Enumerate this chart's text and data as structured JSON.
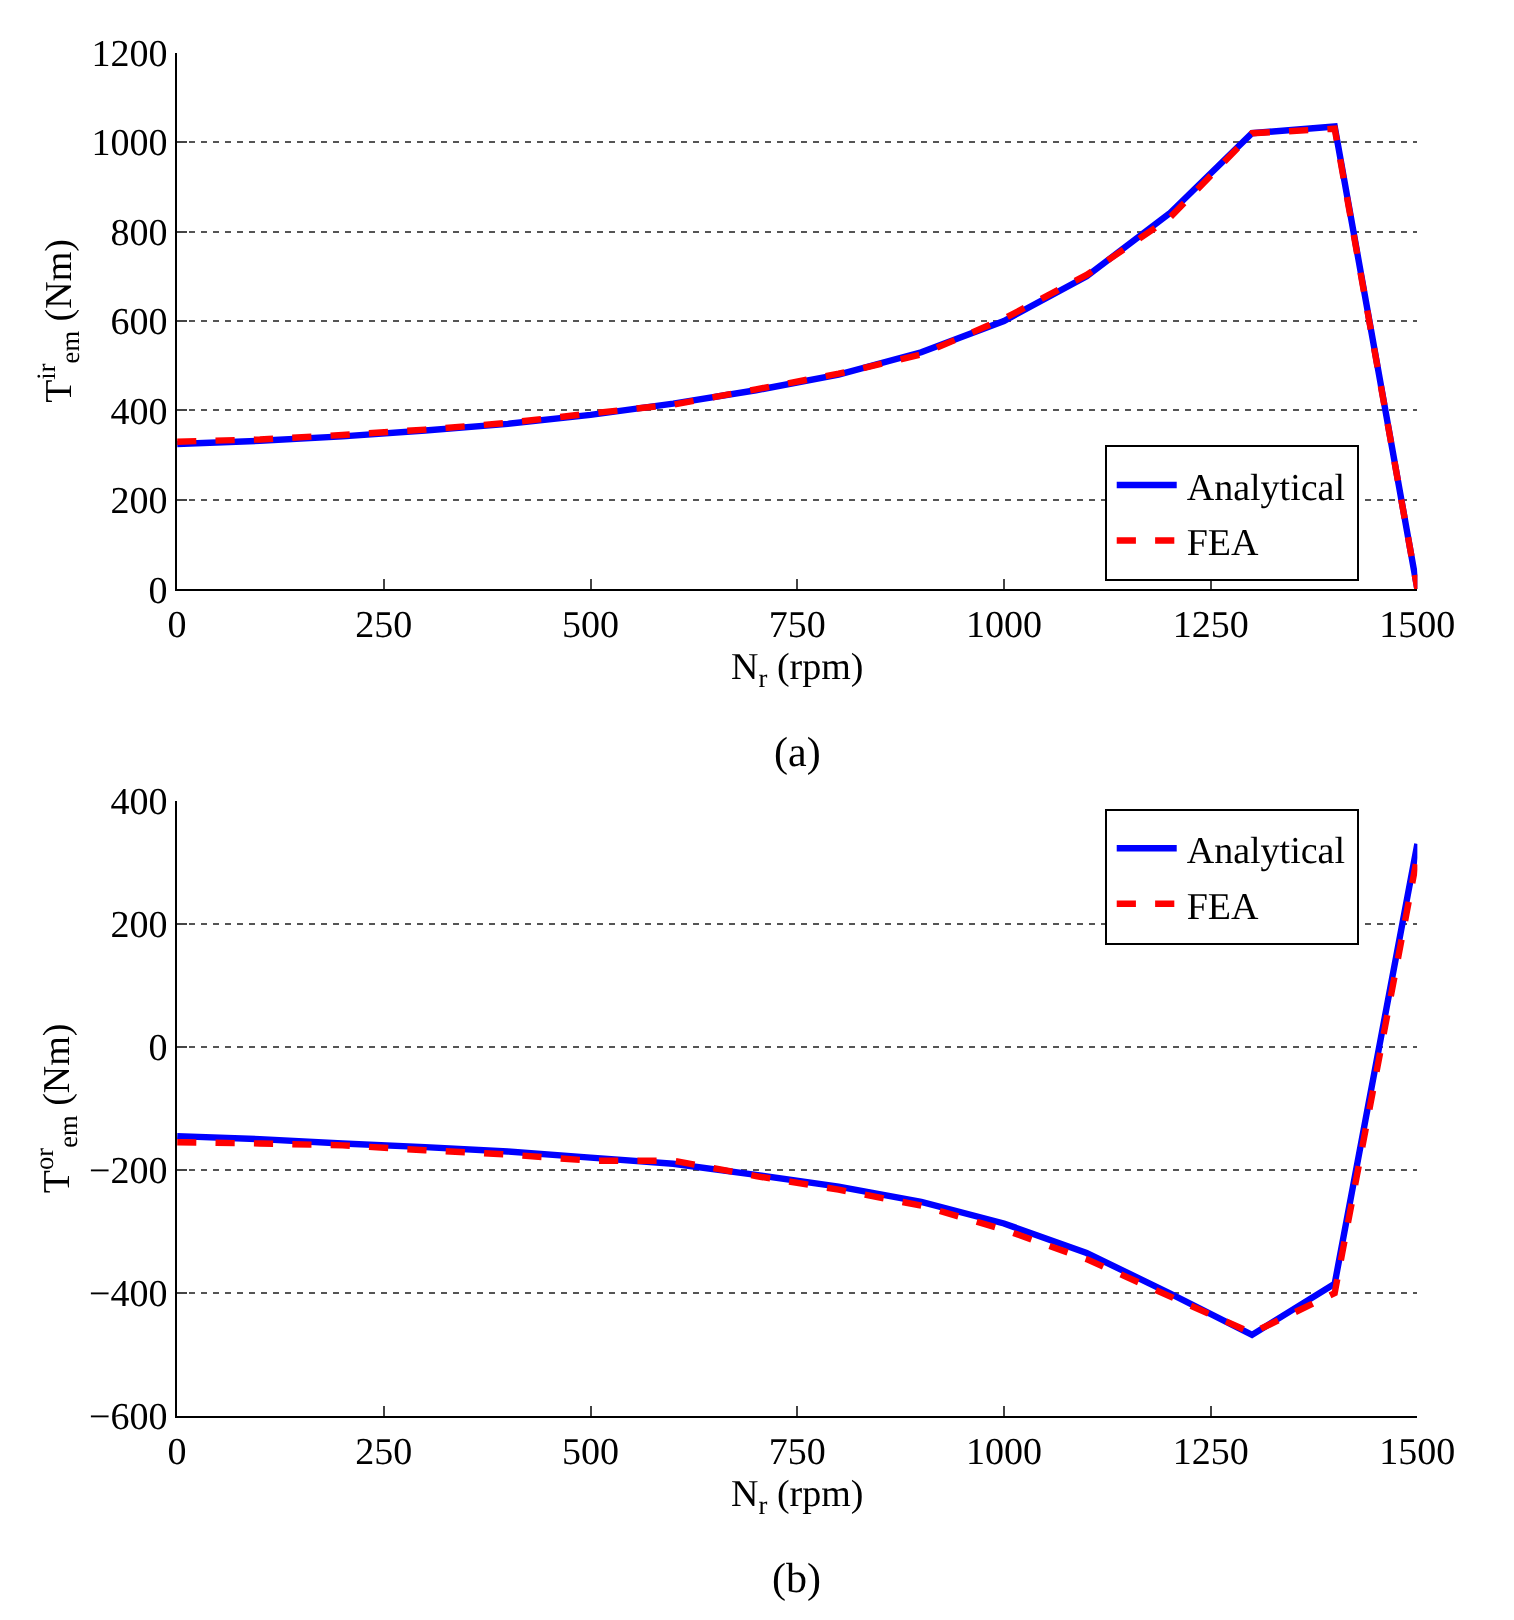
{
  "chart_data": [
    {
      "type": "line",
      "ylabel": "T$^{ir}$$_{em}$ (Nm)",
      "xlabel": "N$_{r}$ (rpm)",
      "annotations": [
        "(a)"
      ],
      "x": [
        0,
        100,
        200,
        300,
        400,
        500,
        600,
        700,
        800,
        900,
        1000,
        1100,
        1200,
        1300,
        1400,
        1500
      ],
      "series": [
        {
          "name": "Analytical",
          "color": "#0000ff",
          "line_style": "solid",
          "values": [
            325,
            332,
            342,
            355,
            370,
            390,
            415,
            445,
            480,
            530,
            600,
            700,
            840,
            1020,
            1035,
            0
          ]
        },
        {
          "name": "FEA",
          "color": "#ff0000",
          "line_style": "dashed",
          "values": [
            330,
            335,
            345,
            357,
            372,
            393,
            413,
            447,
            482,
            525,
            605,
            703,
            830,
            1020,
            1030,
            0
          ]
        }
      ],
      "xlim": [
        0,
        1500
      ],
      "xticks": [
        0,
        250,
        500,
        750,
        1000,
        1250,
        1500
      ],
      "ylim": [
        0,
        1200
      ],
      "yticks": [
        0,
        200,
        400,
        600,
        800,
        1000,
        1200
      ],
      "grid": "y",
      "legend": "bottom right",
      "marker": "none"
    },
    {
      "type": "line",
      "ylabel": "T$^{or}$$_{em}$ (Nm)",
      "xlabel": "N$_{r}$ (rpm)",
      "annotations": [
        "(b)"
      ],
      "x": [
        0,
        100,
        200,
        300,
        400,
        500,
        600,
        700,
        800,
        900,
        1000,
        1100,
        1200,
        1300,
        1400,
        1500
      ],
      "series": [
        {
          "name": "Analytical",
          "color": "#0000ff",
          "line_style": "solid",
          "values": [
            -145,
            -150,
            -157,
            -163,
            -170,
            -180,
            -190,
            -208,
            -227,
            -252,
            -287,
            -335,
            -400,
            -468,
            -385,
            330
          ]
        },
        {
          "name": "FEA",
          "color": "#ff0000",
          "line_style": "dashed",
          "values": [
            -155,
            -157,
            -160,
            -168,
            -175,
            -185,
            -185,
            -210,
            -232,
            -258,
            -297,
            -345,
            -405,
            -465,
            -400,
            310
          ]
        }
      ],
      "xlim": [
        0,
        1500
      ],
      "xticks": [
        0,
        250,
        500,
        750,
        1000,
        1250,
        1500
      ],
      "ylim": [
        -600,
        400
      ],
      "yticks": [
        -600,
        -400,
        -200,
        0,
        200,
        400
      ],
      "grid": "y",
      "legend": "top right",
      "marker": "none"
    }
  ]
}
